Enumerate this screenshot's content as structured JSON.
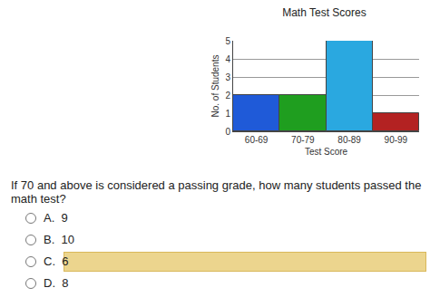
{
  "chart_data": {
    "type": "bar",
    "title": "Math Test Scores",
    "x_label": "Test Score",
    "y_label": "No. of Students",
    "categories": [
      "60-69",
      "70-79",
      "80-89",
      "90-99"
    ],
    "values": [
      2,
      2,
      5,
      1
    ],
    "colors": [
      "#1f5ad8",
      "#1f9e1f",
      "#2aa8e0",
      "#b32222"
    ],
    "ylim": [
      0,
      5
    ],
    "yticks": [
      0,
      1,
      2,
      3,
      4,
      5
    ],
    "grid": true
  },
  "question": "If 70 and above is considered a passing grade, how many students passed the math test?",
  "options": [
    {
      "letter": "A.",
      "text": "9"
    },
    {
      "letter": "B.",
      "text": "10"
    },
    {
      "letter": "C.",
      "text": "6"
    },
    {
      "letter": "D.",
      "text": "8"
    }
  ],
  "selected": "C."
}
